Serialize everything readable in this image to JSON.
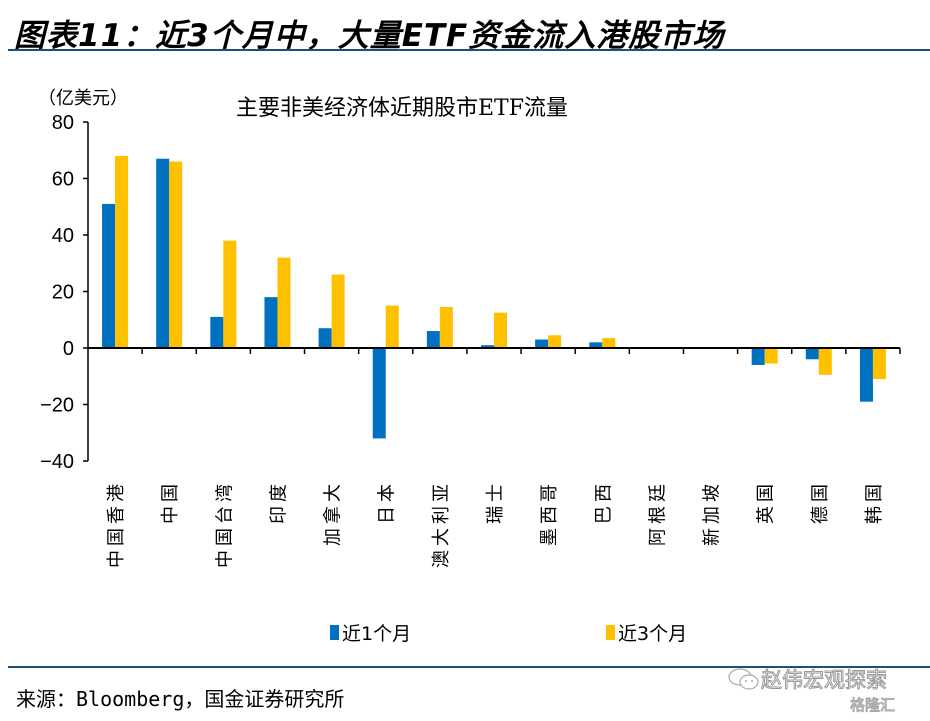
{
  "figure_title": "图表11：近3个月中，大量ETF资金流入港股市场",
  "source": "来源：Bloomberg，国金证券研究所",
  "watermark": {
    "account": "赵伟宏观探索",
    "site": "格隆汇",
    "icon": "wechat-icon"
  },
  "colors": {
    "series1": "#0070c0",
    "series2": "#ffc000",
    "rule": "#1f4e79"
  },
  "chart_data": {
    "type": "bar",
    "title": "主要非美经济体近期股市ETF流量",
    "ylabel": "（亿美元）",
    "xlabel": "",
    "ylim": [
      -40,
      80
    ],
    "yticks": [
      80,
      60,
      40,
      20,
      0,
      -20,
      -40
    ],
    "ytick_labels": [
      "80",
      "60",
      "40",
      "20",
      "0",
      "−20",
      "−40"
    ],
    "grid": false,
    "legend_position": "bottom",
    "categories": [
      "中国香港",
      "中国",
      "中国台湾",
      "印度",
      "加拿大",
      "日本",
      "澳大利亚",
      "瑞士",
      "墨西哥",
      "巴西",
      "阿根廷",
      "新加坡",
      "英国",
      "德国",
      "韩国"
    ],
    "series": [
      {
        "name": "近1个月",
        "values": [
          51,
          67,
          11,
          18,
          7,
          -32,
          6,
          1,
          3,
          2,
          0.3,
          0.1,
          -6,
          -4,
          -19
        ]
      },
      {
        "name": "近3个月",
        "values": [
          68,
          66,
          38,
          32,
          26,
          15,
          14.5,
          12.5,
          4.5,
          3.5,
          0.2,
          0.2,
          -5.5,
          -9.5,
          -11
        ]
      }
    ]
  }
}
